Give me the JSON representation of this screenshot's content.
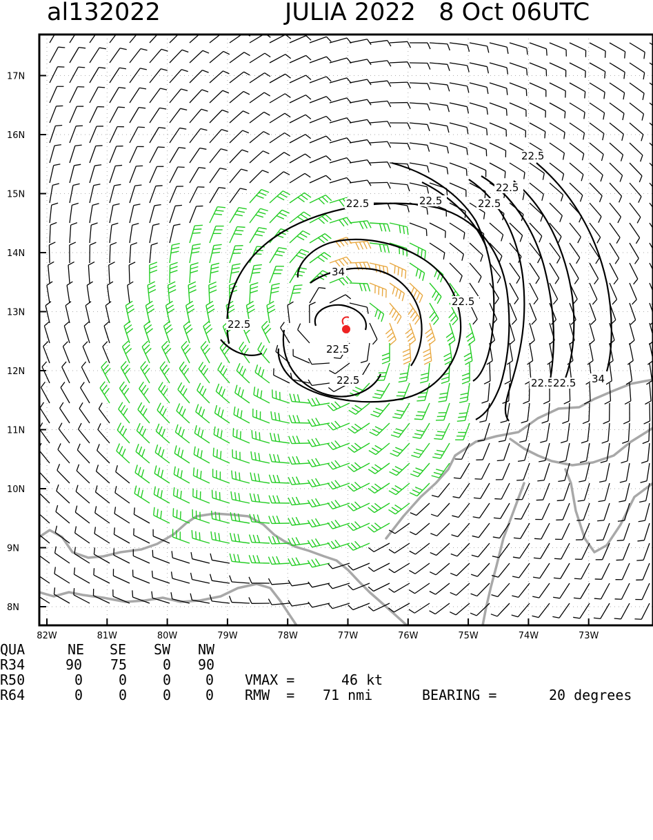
{
  "header": {
    "storm_id": "al132022",
    "storm_title": "JULIA 2022   8 Oct 06UTC"
  },
  "axes": {
    "lon_labels": [
      "82W",
      "81W",
      "80W",
      "79W",
      "78W",
      "77W",
      "76W",
      "75W",
      "74W",
      "73W"
    ],
    "lat_labels": [
      "17N",
      "16N",
      "15N",
      "14N",
      "13N",
      "12N",
      "11N",
      "10N",
      "9N",
      "8N"
    ]
  },
  "contour_labels": [
    "22.5",
    "22.5",
    "22.5",
    "22.5",
    "22.5",
    "22.5",
    "22.5",
    "22.5",
    "22.5",
    "22.5",
    "22.5",
    "34",
    "34"
  ],
  "colors": {
    "frame": "#000000",
    "barb_weak": "#000000",
    "barb_34kt": "#22cc22",
    "barb_50kt": "#e8a840",
    "coast": "#a8a8a8",
    "center_marker": "#ee2222"
  },
  "storm_center": {
    "lon": -77.2,
    "lat": 12.7
  },
  "wind_radii": {
    "columns": [
      "QUA",
      "NE",
      "SE",
      "SW",
      "NW"
    ],
    "rows": [
      {
        "label": "R34",
        "values": [
          "90",
          "75",
          "0",
          "90"
        ]
      },
      {
        "label": "R50",
        "values": [
          "0",
          "0",
          "0",
          "0"
        ]
      },
      {
        "label": "R64",
        "values": [
          "0",
          "0",
          "0",
          "0"
        ]
      }
    ]
  },
  "summary": {
    "vmax_label": "VMAX =",
    "vmax_value": "46 kt",
    "rmw_label": "RMW  =",
    "rmw_value": "71 nmi",
    "bearing_label": "BEARING =",
    "bearing_value": "20 degrees"
  }
}
